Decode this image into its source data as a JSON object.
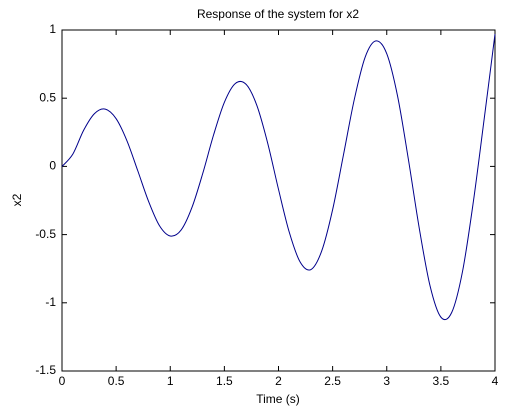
{
  "chart_data": {
    "type": "line",
    "title": "Response of the system for x2",
    "x_label": "Time (s)",
    "y_label": "x2",
    "x": [
      0,
      0.1,
      0.2,
      0.3,
      0.4,
      0.5,
      0.6,
      0.7,
      0.8,
      0.9,
      1,
      1.1,
      1.2,
      1.3,
      1.4,
      1.5,
      1.6,
      1.7,
      1.8,
      1.9,
      2,
      2.1,
      2.2,
      2.3,
      2.4,
      2.5,
      2.6,
      2.7,
      2.8,
      2.9,
      3,
      3.1,
      3.2,
      3.3,
      3.4,
      3.5,
      3.6,
      3.7,
      3.8,
      3.9,
      4
    ],
    "series": [
      {
        "name": "x2",
        "color": "#00008b",
        "values": [
          0,
          0.09,
          0.265,
          0.387,
          0.42,
          0.35,
          0.188,
          -0.032,
          -0.257,
          -0.434,
          -0.51,
          -0.467,
          -0.302,
          -0.052,
          0.23,
          0.47,
          0.607,
          0.602,
          0.447,
          0.171,
          -0.168,
          -0.484,
          -0.701,
          -0.756,
          -0.618,
          -0.317,
          0.084,
          0.49,
          0.8,
          0.92,
          0.826,
          0.515,
          0.051,
          -0.452,
          -0.876,
          -1.105,
          -1.071,
          -0.77,
          -0.259,
          0.348,
          0.97
        ]
      }
    ],
    "xlim": [
      0,
      4
    ],
    "xticks": [
      0,
      0.5,
      1,
      1.5,
      2,
      2.5,
      3,
      3.5,
      4
    ],
    "ylim": [
      -1.5,
      1
    ],
    "yticks": [
      -1.5,
      -1,
      -0.5,
      0,
      0.5,
      1
    ],
    "grid": false
  }
}
